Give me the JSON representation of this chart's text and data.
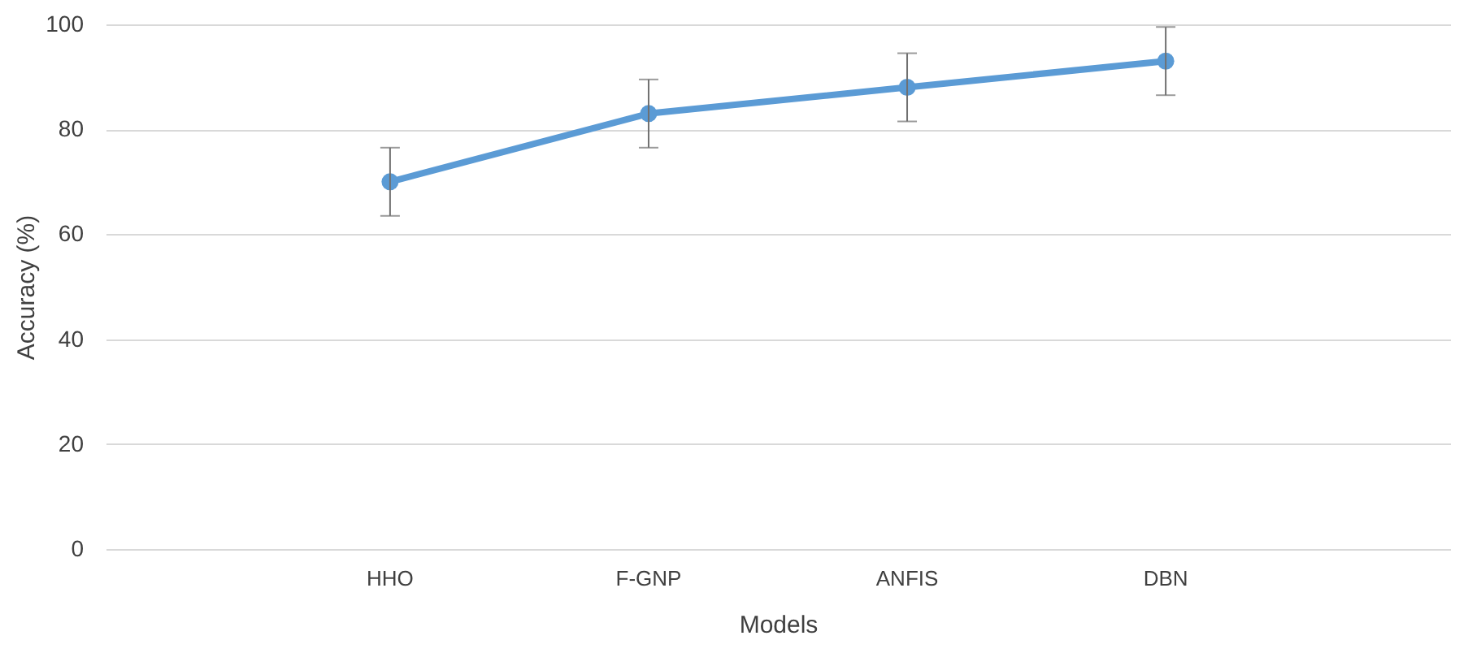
{
  "chart_data": {
    "type": "line",
    "xlabel": "Models",
    "ylabel": "Accuracy (%)",
    "categories": [
      "HHO",
      "F-GNP",
      "ANFIS",
      "DBN"
    ],
    "series": [
      {
        "color": "#5b9bd5",
        "values": [
          70,
          83,
          88,
          93
        ],
        "errors": [
          6.5,
          6.5,
          6.5,
          6.5
        ]
      }
    ],
    "ylim": [
      0,
      100
    ],
    "yticks": [
      0,
      20,
      40,
      60,
      80,
      100
    ],
    "grid": "y",
    "marker": "circle",
    "line_style": "solid"
  }
}
